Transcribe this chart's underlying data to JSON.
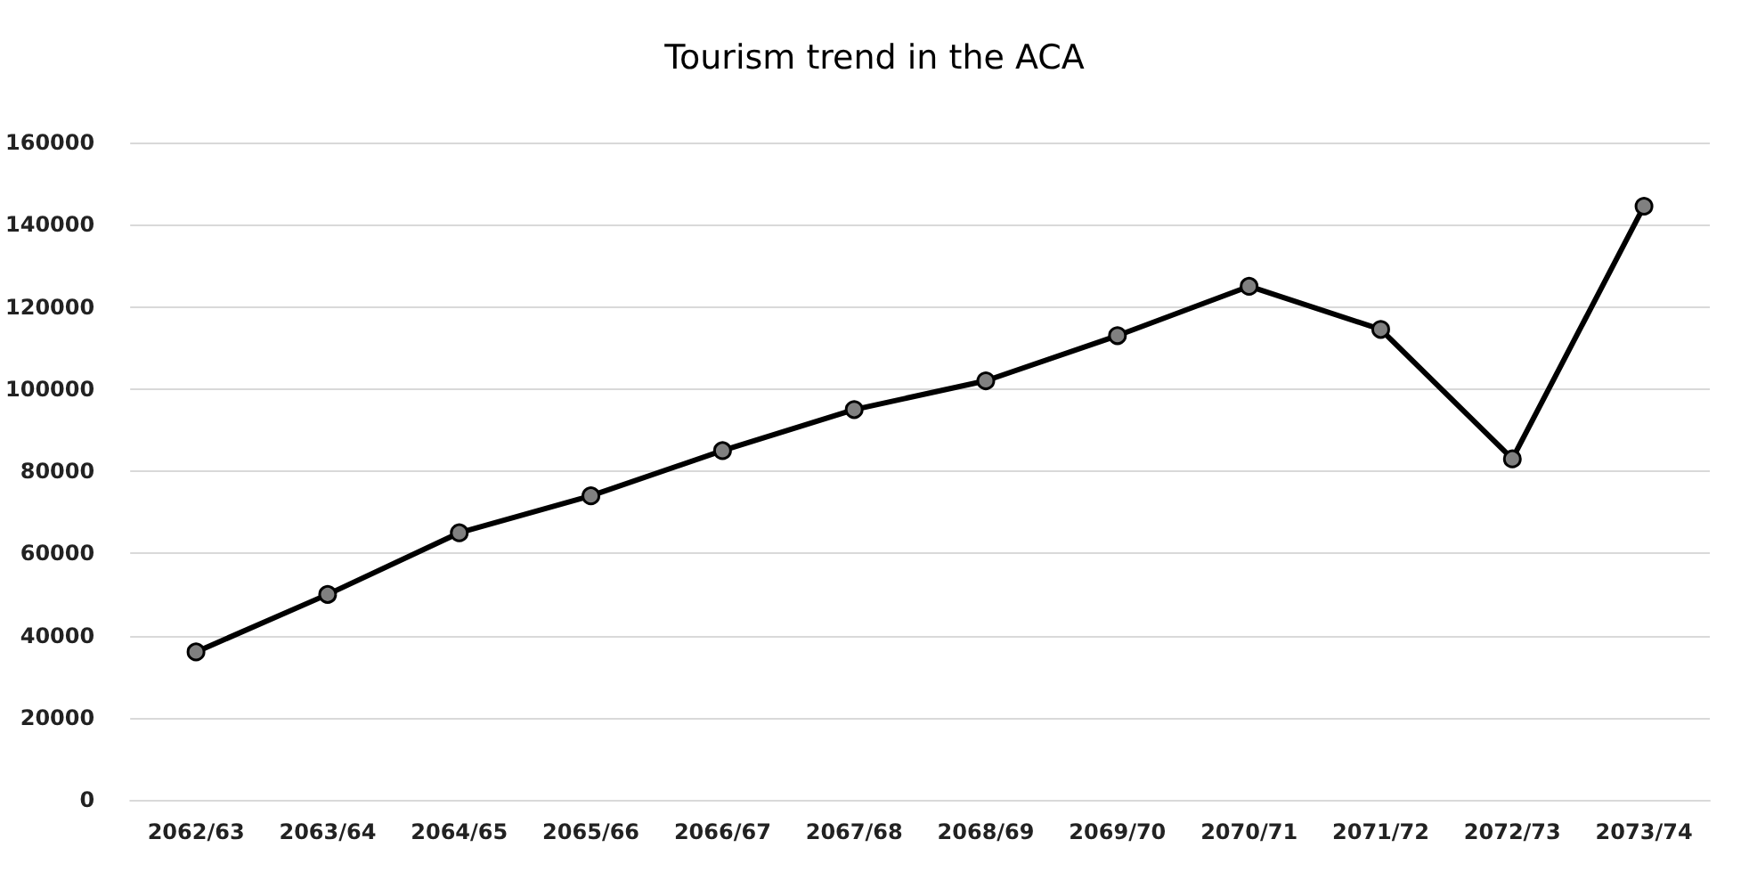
{
  "chart_data": {
    "type": "line",
    "title": "Tourism trend in the ACA",
    "categories": [
      "2062/63",
      "2063/64",
      "2064/65",
      "2065/66",
      "2066/67",
      "2067/68",
      "2068/69",
      "2069/70",
      "2070/71",
      "2071/72",
      "2072/73",
      "2073/74"
    ],
    "series": [
      {
        "color": "#000000",
        "colors": [
          "#808080",
          "#808080",
          "#808080",
          "#808080",
          "#808080",
          "#808080",
          "#808080",
          "#808080",
          "#808080",
          "#808080",
          "#808080",
          "#808080"
        ],
        "values": [
          36000,
          50000,
          65000,
          74000,
          85000,
          95000,
          102000,
          113000,
          125000,
          114500,
          83000,
          144500
        ]
      }
    ],
    "ylim": [
      0,
      160000
    ],
    "yticks": [
      0,
      20000,
      40000,
      60000,
      80000,
      100000,
      120000,
      140000,
      160000
    ],
    "grid": "y",
    "marker": "circle",
    "line_style": "solid"
  }
}
